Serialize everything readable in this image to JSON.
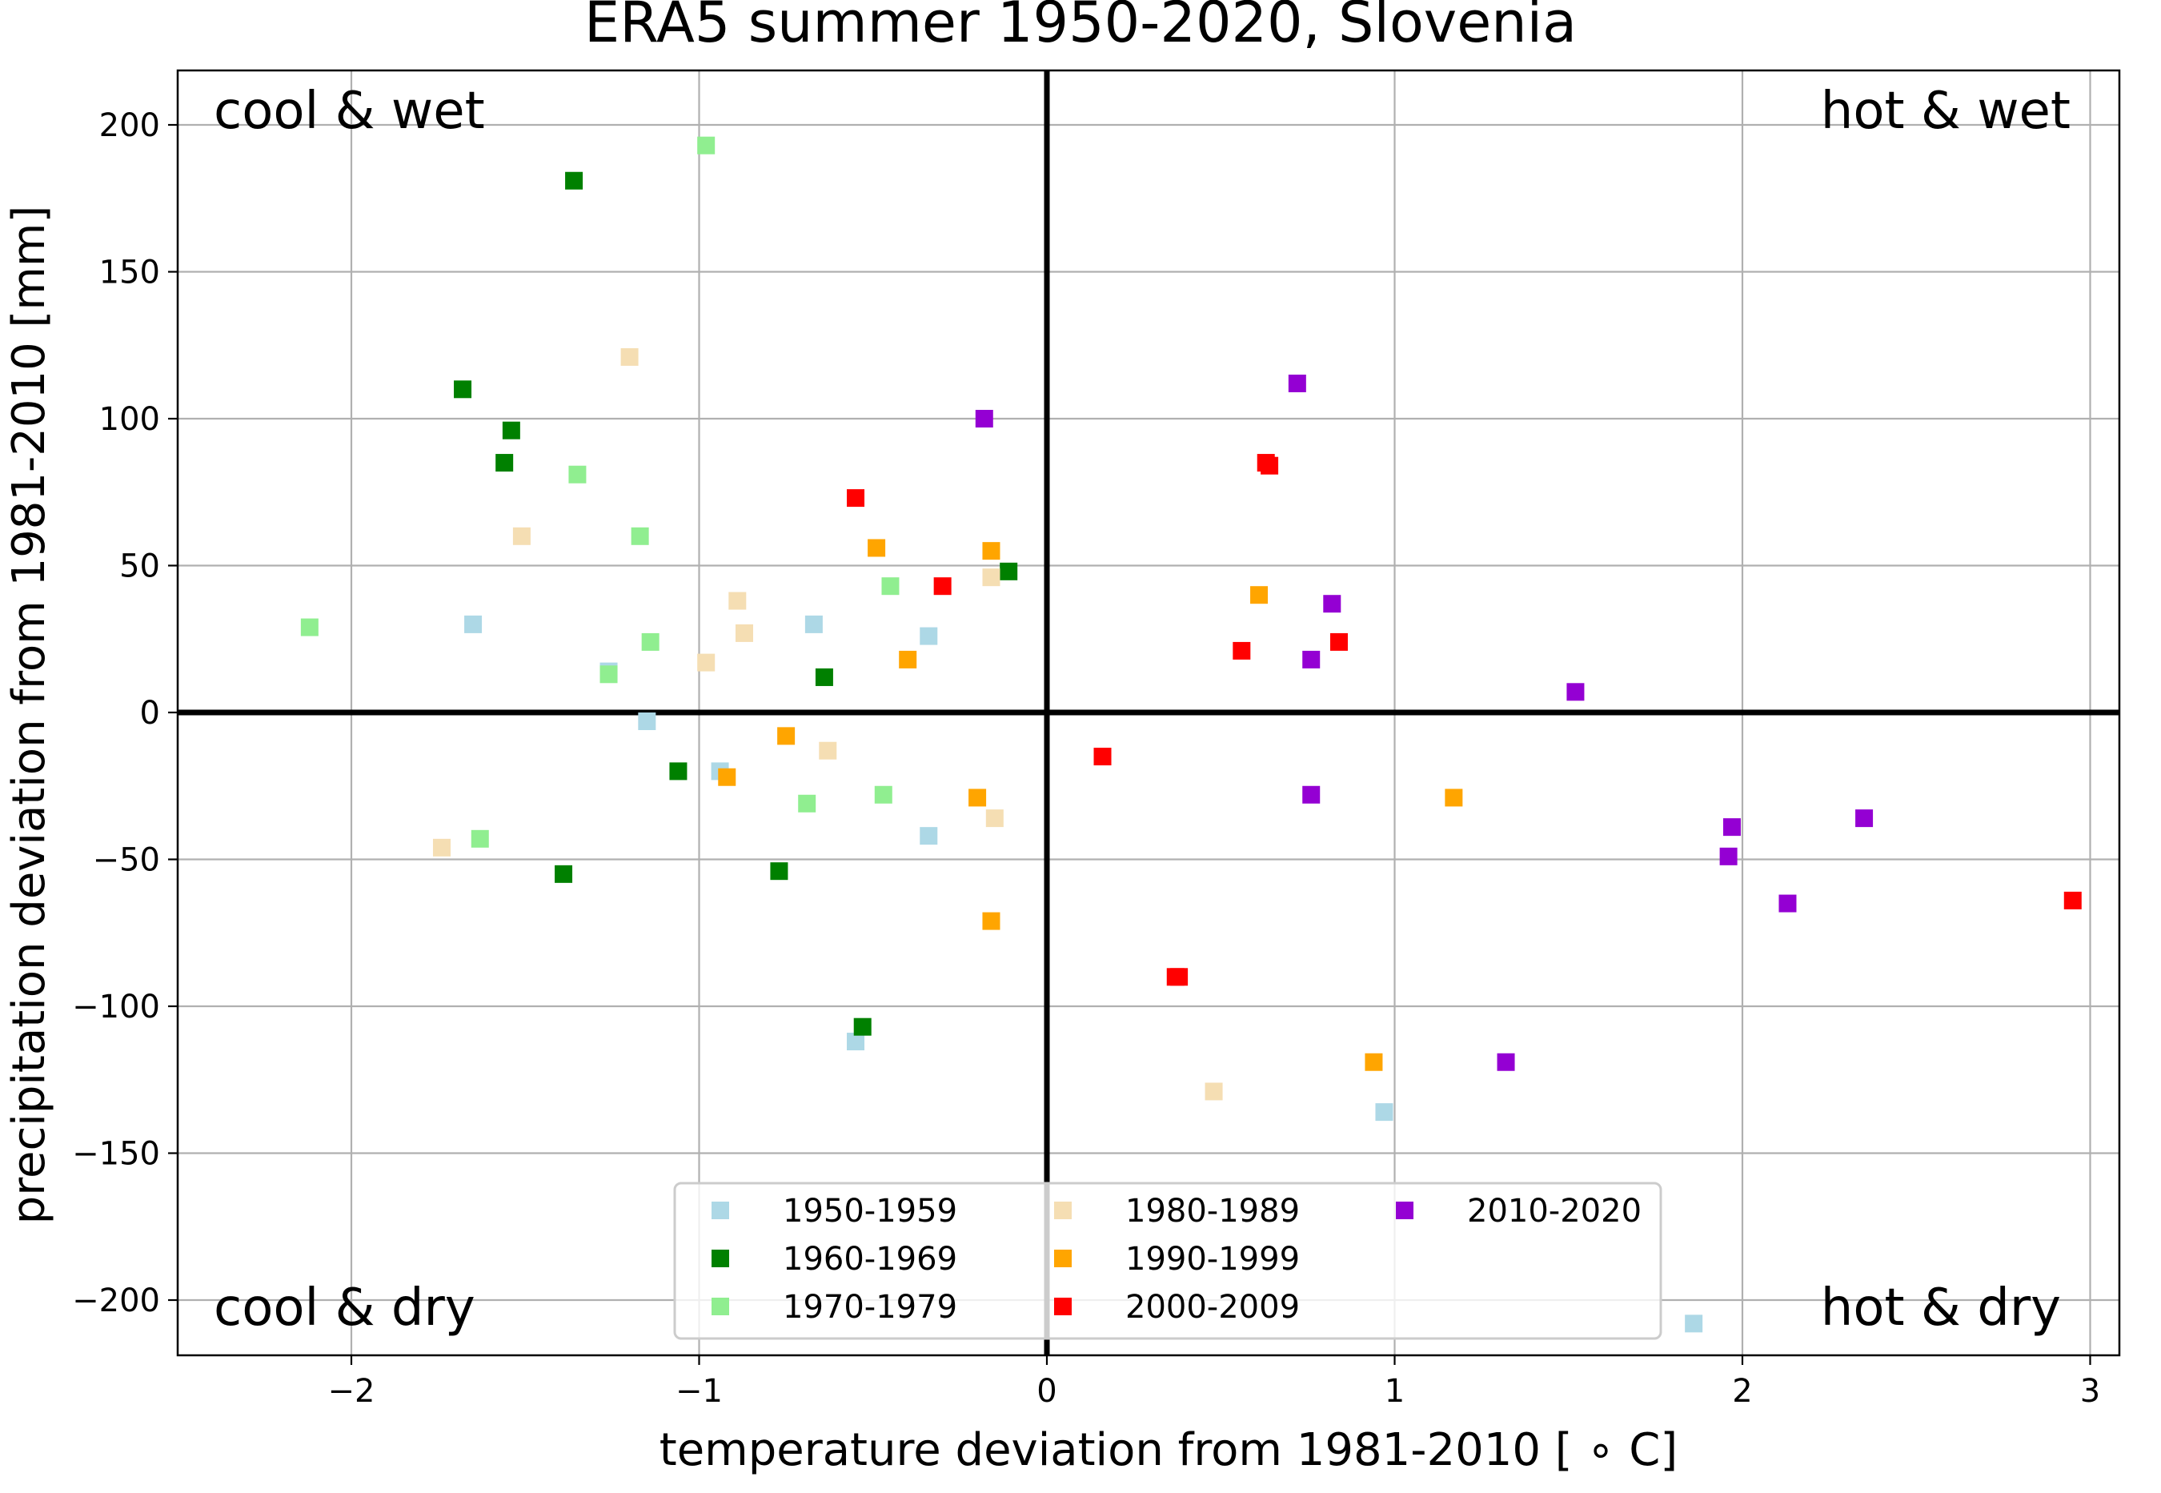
{
  "chart_data": {
    "type": "scatter",
    "title": "ERA5 summer 1950-2020, Slovenia",
    "xlabel": "temperature deviation from 1981-2010 [$^\\circ$C]",
    "xlabel_display": "temperature deviation from 1981-2010 [ ∘ C]",
    "ylabel": "precipitation deviation from 1981-2010 [mm]",
    "xlim": [
      -2.5,
      3.1
    ],
    "ylim": [
      -220,
      220
    ],
    "xticks": [
      -2,
      -1,
      0,
      1,
      2,
      3
    ],
    "xtick_labels": [
      "−2",
      "−1",
      "0",
      "1",
      "2",
      "3"
    ],
    "yticks": [
      -200,
      -150,
      -100,
      -50,
      0,
      50,
      100,
      150,
      200
    ],
    "ytick_labels": [
      "−200",
      "−150",
      "−100",
      "−50",
      "0",
      "50",
      "100",
      "150",
      "200"
    ],
    "grid": true,
    "legend_position": "bottom-center",
    "legend_columns": 3,
    "marker": "square",
    "quadrant_labels": {
      "top_left": "cool & wet",
      "top_right": "hot & wet",
      "bottom_left": "cool & dry",
      "bottom_right": "hot & dry"
    },
    "series": [
      {
        "name": "1950-1959",
        "color": "#add8e6",
        "points": [
          [
            -1.65,
            30
          ],
          [
            -1.26,
            14
          ],
          [
            -1.15,
            -3
          ],
          [
            -0.94,
            -20
          ],
          [
            -0.67,
            30
          ],
          [
            -0.55,
            -112
          ],
          [
            -0.34,
            26
          ],
          [
            -0.34,
            -42
          ],
          [
            0.97,
            -136
          ],
          [
            1.86,
            -208
          ]
        ]
      },
      {
        "name": "1960-1969",
        "color": "#008000",
        "points": [
          [
            -1.36,
            181
          ],
          [
            -1.68,
            110
          ],
          [
            -1.54,
            96
          ],
          [
            -1.56,
            85
          ],
          [
            -0.64,
            12
          ],
          [
            -1.06,
            -20
          ],
          [
            -1.39,
            -55
          ],
          [
            -0.77,
            -54
          ],
          [
            -0.53,
            -107
          ],
          [
            -0.11,
            48
          ]
        ]
      },
      {
        "name": "1970-1979",
        "color": "#90ee90",
        "points": [
          [
            -0.98,
            193
          ],
          [
            -1.35,
            81
          ],
          [
            -1.17,
            60
          ],
          [
            -2.12,
            29
          ],
          [
            -1.14,
            24
          ],
          [
            -1.26,
            13
          ],
          [
            -0.45,
            43
          ],
          [
            -1.63,
            -43
          ],
          [
            -0.69,
            -31
          ],
          [
            -0.47,
            -28
          ]
        ]
      },
      {
        "name": "1980-1989",
        "color": "#f5deb3",
        "points": [
          [
            -1.2,
            121
          ],
          [
            -1.51,
            60
          ],
          [
            -0.89,
            38
          ],
          [
            -0.87,
            27
          ],
          [
            -0.98,
            17
          ],
          [
            -0.63,
            -13
          ],
          [
            -0.16,
            46
          ],
          [
            -0.15,
            -36
          ],
          [
            -1.74,
            -46
          ],
          [
            0.48,
            -129
          ]
        ]
      },
      {
        "name": "1990-1999",
        "color": "#ffa500",
        "points": [
          [
            -0.49,
            56
          ],
          [
            -0.4,
            18
          ],
          [
            -0.16,
            55
          ],
          [
            -0.75,
            -8
          ],
          [
            -0.92,
            -22
          ],
          [
            -0.2,
            -29
          ],
          [
            -0.16,
            -71
          ],
          [
            0.61,
            40
          ],
          [
            1.17,
            -29
          ],
          [
            0.94,
            -119
          ]
        ]
      },
      {
        "name": "2000-2009",
        "color": "#ff0000",
        "points": [
          [
            -0.55,
            73
          ],
          [
            -0.3,
            43
          ],
          [
            0.63,
            85
          ],
          [
            0.64,
            84
          ],
          [
            0.56,
            21
          ],
          [
            0.84,
            24
          ],
          [
            0.16,
            -15
          ],
          [
            0.37,
            -90
          ],
          [
            0.38,
            -90
          ],
          [
            2.95,
            -64
          ]
        ]
      },
      {
        "name": "2010-2020",
        "color": "#9400d3",
        "points": [
          [
            -0.18,
            100
          ],
          [
            0.72,
            112
          ],
          [
            0.82,
            37
          ],
          [
            0.76,
            18
          ],
          [
            1.52,
            7
          ],
          [
            0.76,
            -28
          ],
          [
            1.97,
            -39
          ],
          [
            1.96,
            -49
          ],
          [
            2.35,
            -36
          ],
          [
            2.13,
            -65
          ],
          [
            1.32,
            -119
          ]
        ]
      }
    ]
  }
}
